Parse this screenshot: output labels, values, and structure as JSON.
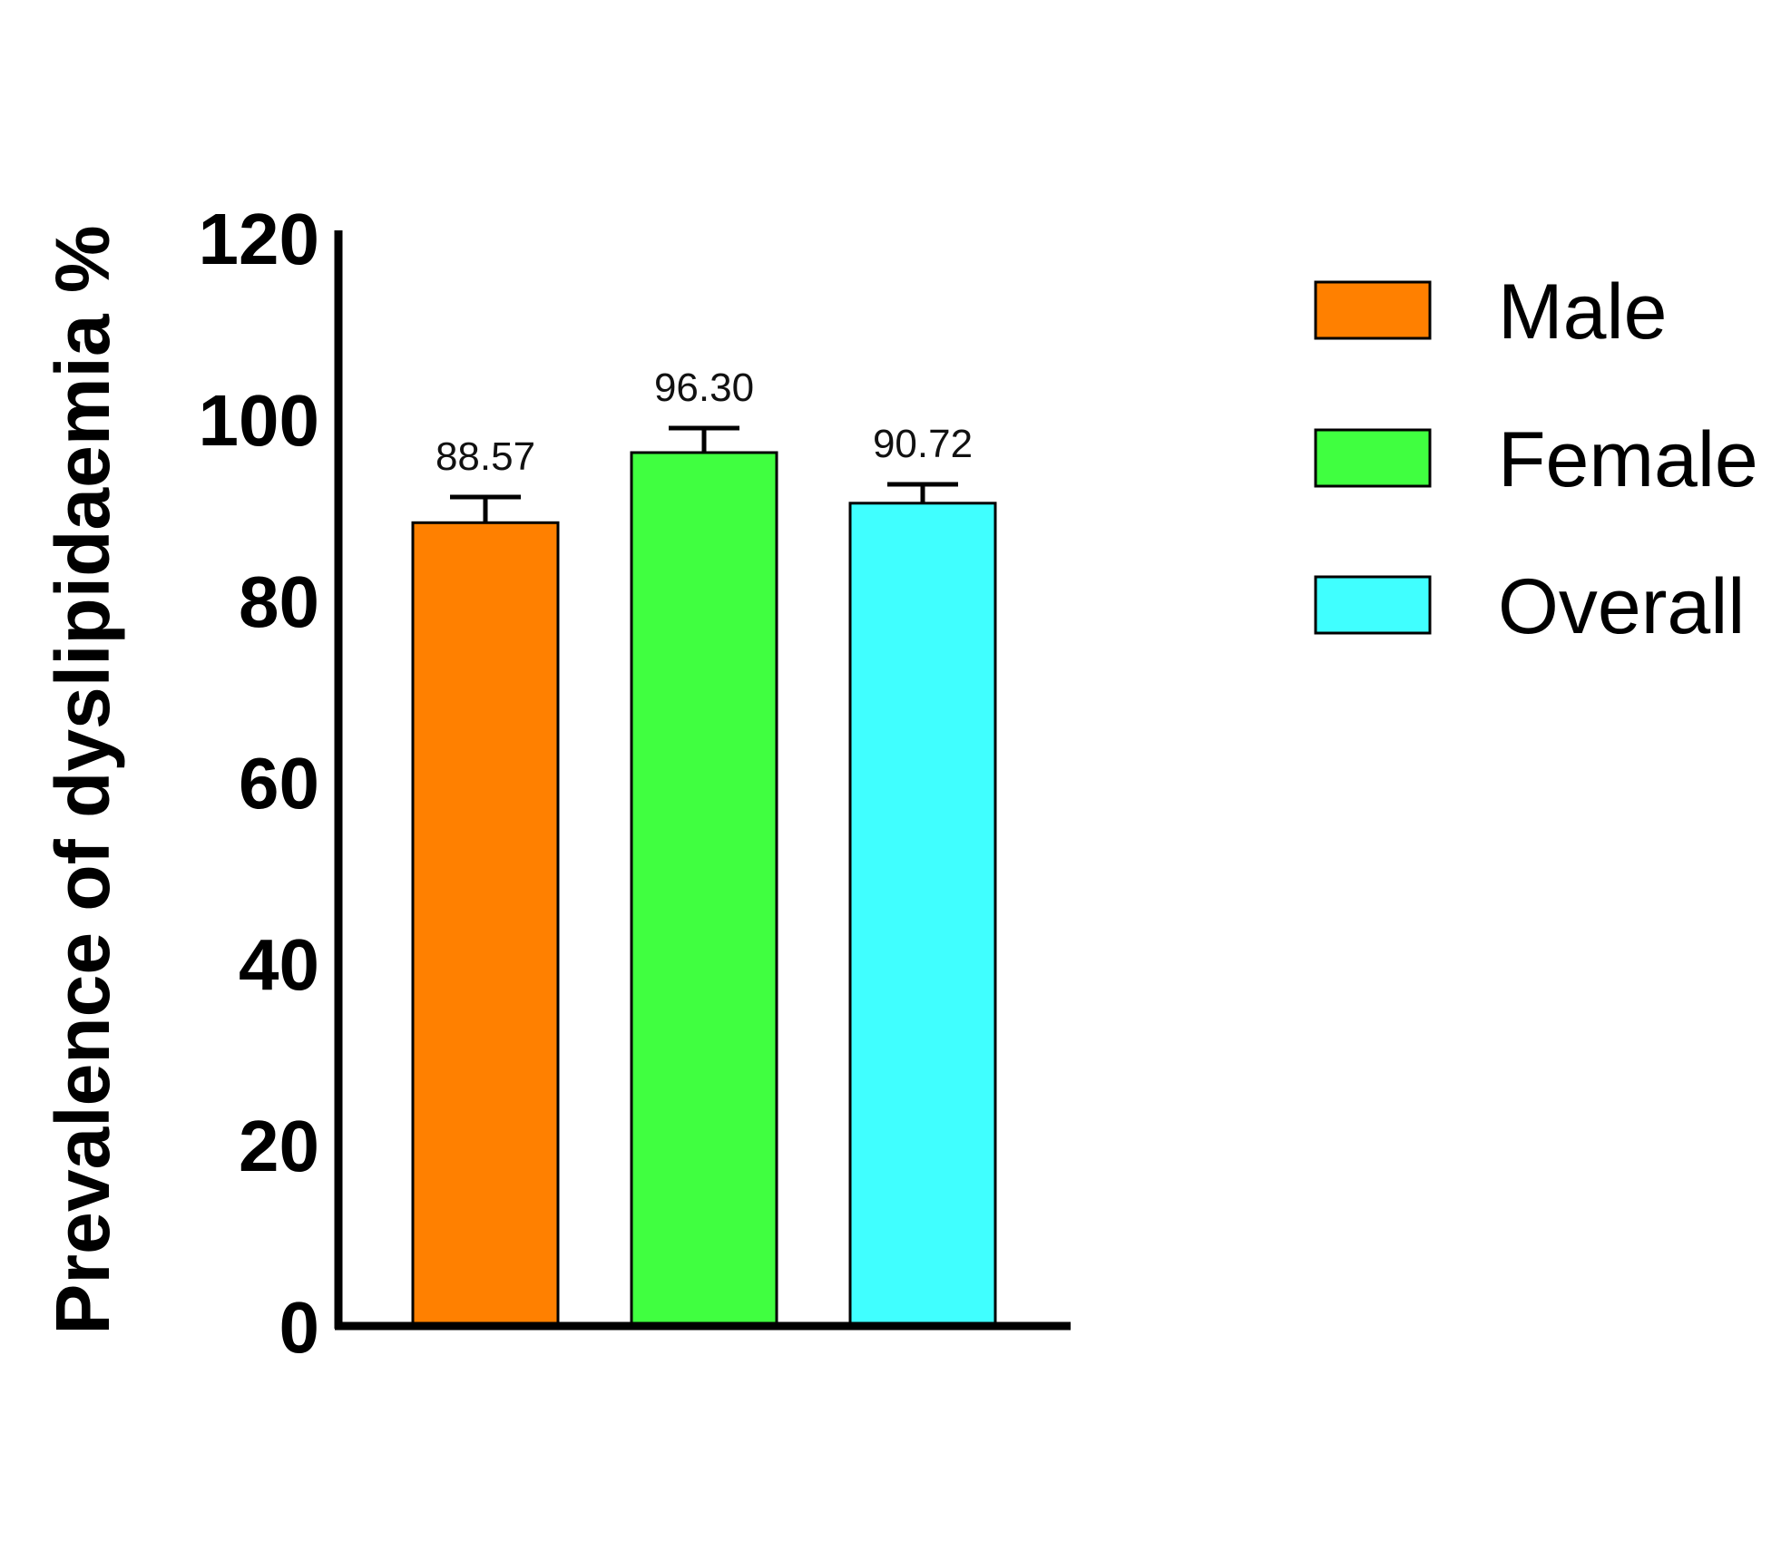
{
  "chart_data": {
    "type": "bar",
    "title": "",
    "xlabel": "",
    "ylabel": "Prevalence of dyslipidaemia %",
    "ylim": [
      0,
      120
    ],
    "yticks": [
      0,
      20,
      40,
      60,
      80,
      100,
      120
    ],
    "yticks_labels": [
      "0",
      "20",
      "40",
      "60",
      "80",
      "100",
      "120"
    ],
    "grid": false,
    "legend_position": "right",
    "categories": [
      "Male",
      "Female",
      "Overall"
    ],
    "values": [
      88.57,
      96.3,
      90.72
    ],
    "value_labels": [
      "88.57",
      "96.30",
      "90.72"
    ],
    "error_upper": [
      91.4,
      99.0,
      92.8
    ],
    "colors": [
      "#ff8000",
      "#40ff40",
      "#40ffff"
    ],
    "legend": [
      {
        "label": "Male",
        "color": "#ff8000"
      },
      {
        "label": "Female",
        "color": "#40ff40"
      },
      {
        "label": "Overall",
        "color": "#40ffff"
      }
    ]
  }
}
